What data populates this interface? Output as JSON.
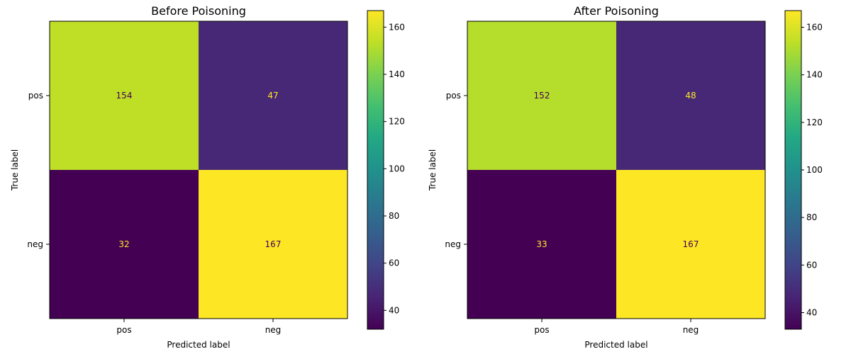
{
  "chart_data": [
    {
      "type": "heatmap",
      "title": "Before Poisoning",
      "xlabel": "Predicted label",
      "ylabel": "True label",
      "x_categories": [
        "pos",
        "neg"
      ],
      "y_categories": [
        "pos",
        "neg"
      ],
      "values": [
        [
          154,
          47
        ],
        [
          32,
          167
        ]
      ],
      "colorbar": {
        "range": [
          32,
          167
        ],
        "ticks": [
          40,
          60,
          80,
          100,
          120,
          140,
          160
        ],
        "colormap": "viridis"
      },
      "grid": false
    },
    {
      "type": "heatmap",
      "title": "After Poisoning",
      "xlabel": "Predicted label",
      "ylabel": "True label",
      "x_categories": [
        "pos",
        "neg"
      ],
      "y_categories": [
        "pos",
        "neg"
      ],
      "values": [
        [
          152,
          48
        ],
        [
          33,
          167
        ]
      ],
      "colorbar": {
        "range": [
          33,
          167
        ],
        "ticks": [
          40,
          60,
          80,
          100,
          120,
          140,
          160
        ],
        "colormap": "viridis"
      },
      "grid": false
    }
  ]
}
